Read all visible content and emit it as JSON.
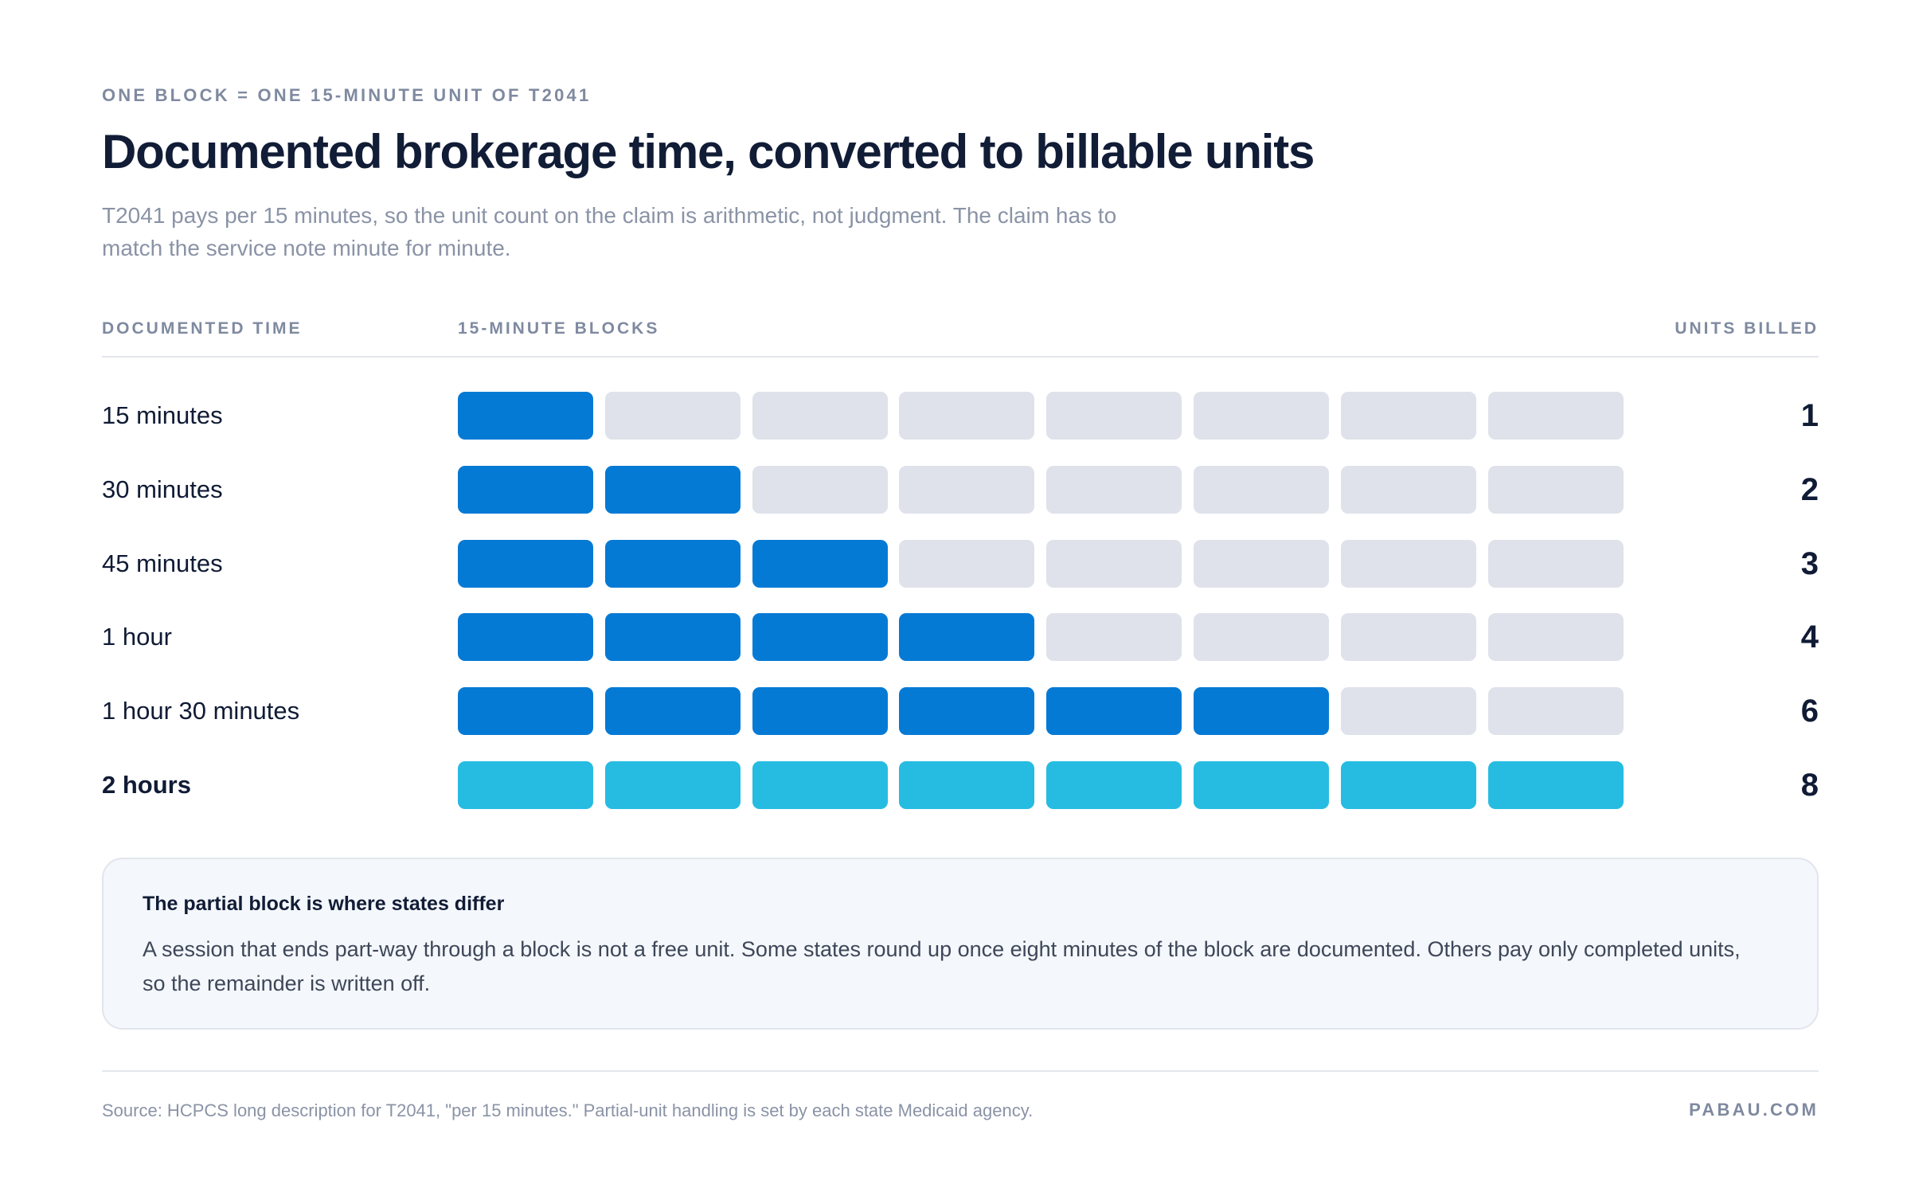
{
  "header": {
    "eyebrow": "ONE BLOCK = ONE 15-MINUTE UNIT OF T2041",
    "title": "Documented brokerage time, converted to billable units",
    "subtitle": "T2041 pays per 15 minutes, so the unit count on the claim is arithmetic, not judgment. The claim has to match the service note minute for minute."
  },
  "columns": {
    "time": "DOCUMENTED TIME",
    "blocks": "15-MINUTE BLOCKS",
    "units": "UNITS BILLED"
  },
  "colors": {
    "filled": "#057ad5",
    "highlight": "#26bce2",
    "empty": "#dfe2ea"
  },
  "chart_data": {
    "type": "table",
    "total_blocks": 8,
    "rows": [
      {
        "label": "15 minutes",
        "units": 1,
        "highlight": false
      },
      {
        "label": "30 minutes",
        "units": 2,
        "highlight": false
      },
      {
        "label": "45 minutes",
        "units": 3,
        "highlight": false
      },
      {
        "label": "1 hour",
        "units": 4,
        "highlight": false
      },
      {
        "label": "1 hour 30 minutes",
        "units": 6,
        "highlight": false
      },
      {
        "label": "2 hours",
        "units": 8,
        "highlight": true
      }
    ]
  },
  "callout": {
    "title": "The partial block is where states differ",
    "body": "A session that ends part-way through a block is not a free unit. Some states round up once eight minutes of the block are documented. Others pay only completed units, so the remainder is written off."
  },
  "footer": {
    "source": "Source: HCPCS long description for T2041, \"per 15 minutes.\" Partial-unit handling is set by each state Medicaid agency.",
    "brand": "PABAU.COM"
  }
}
